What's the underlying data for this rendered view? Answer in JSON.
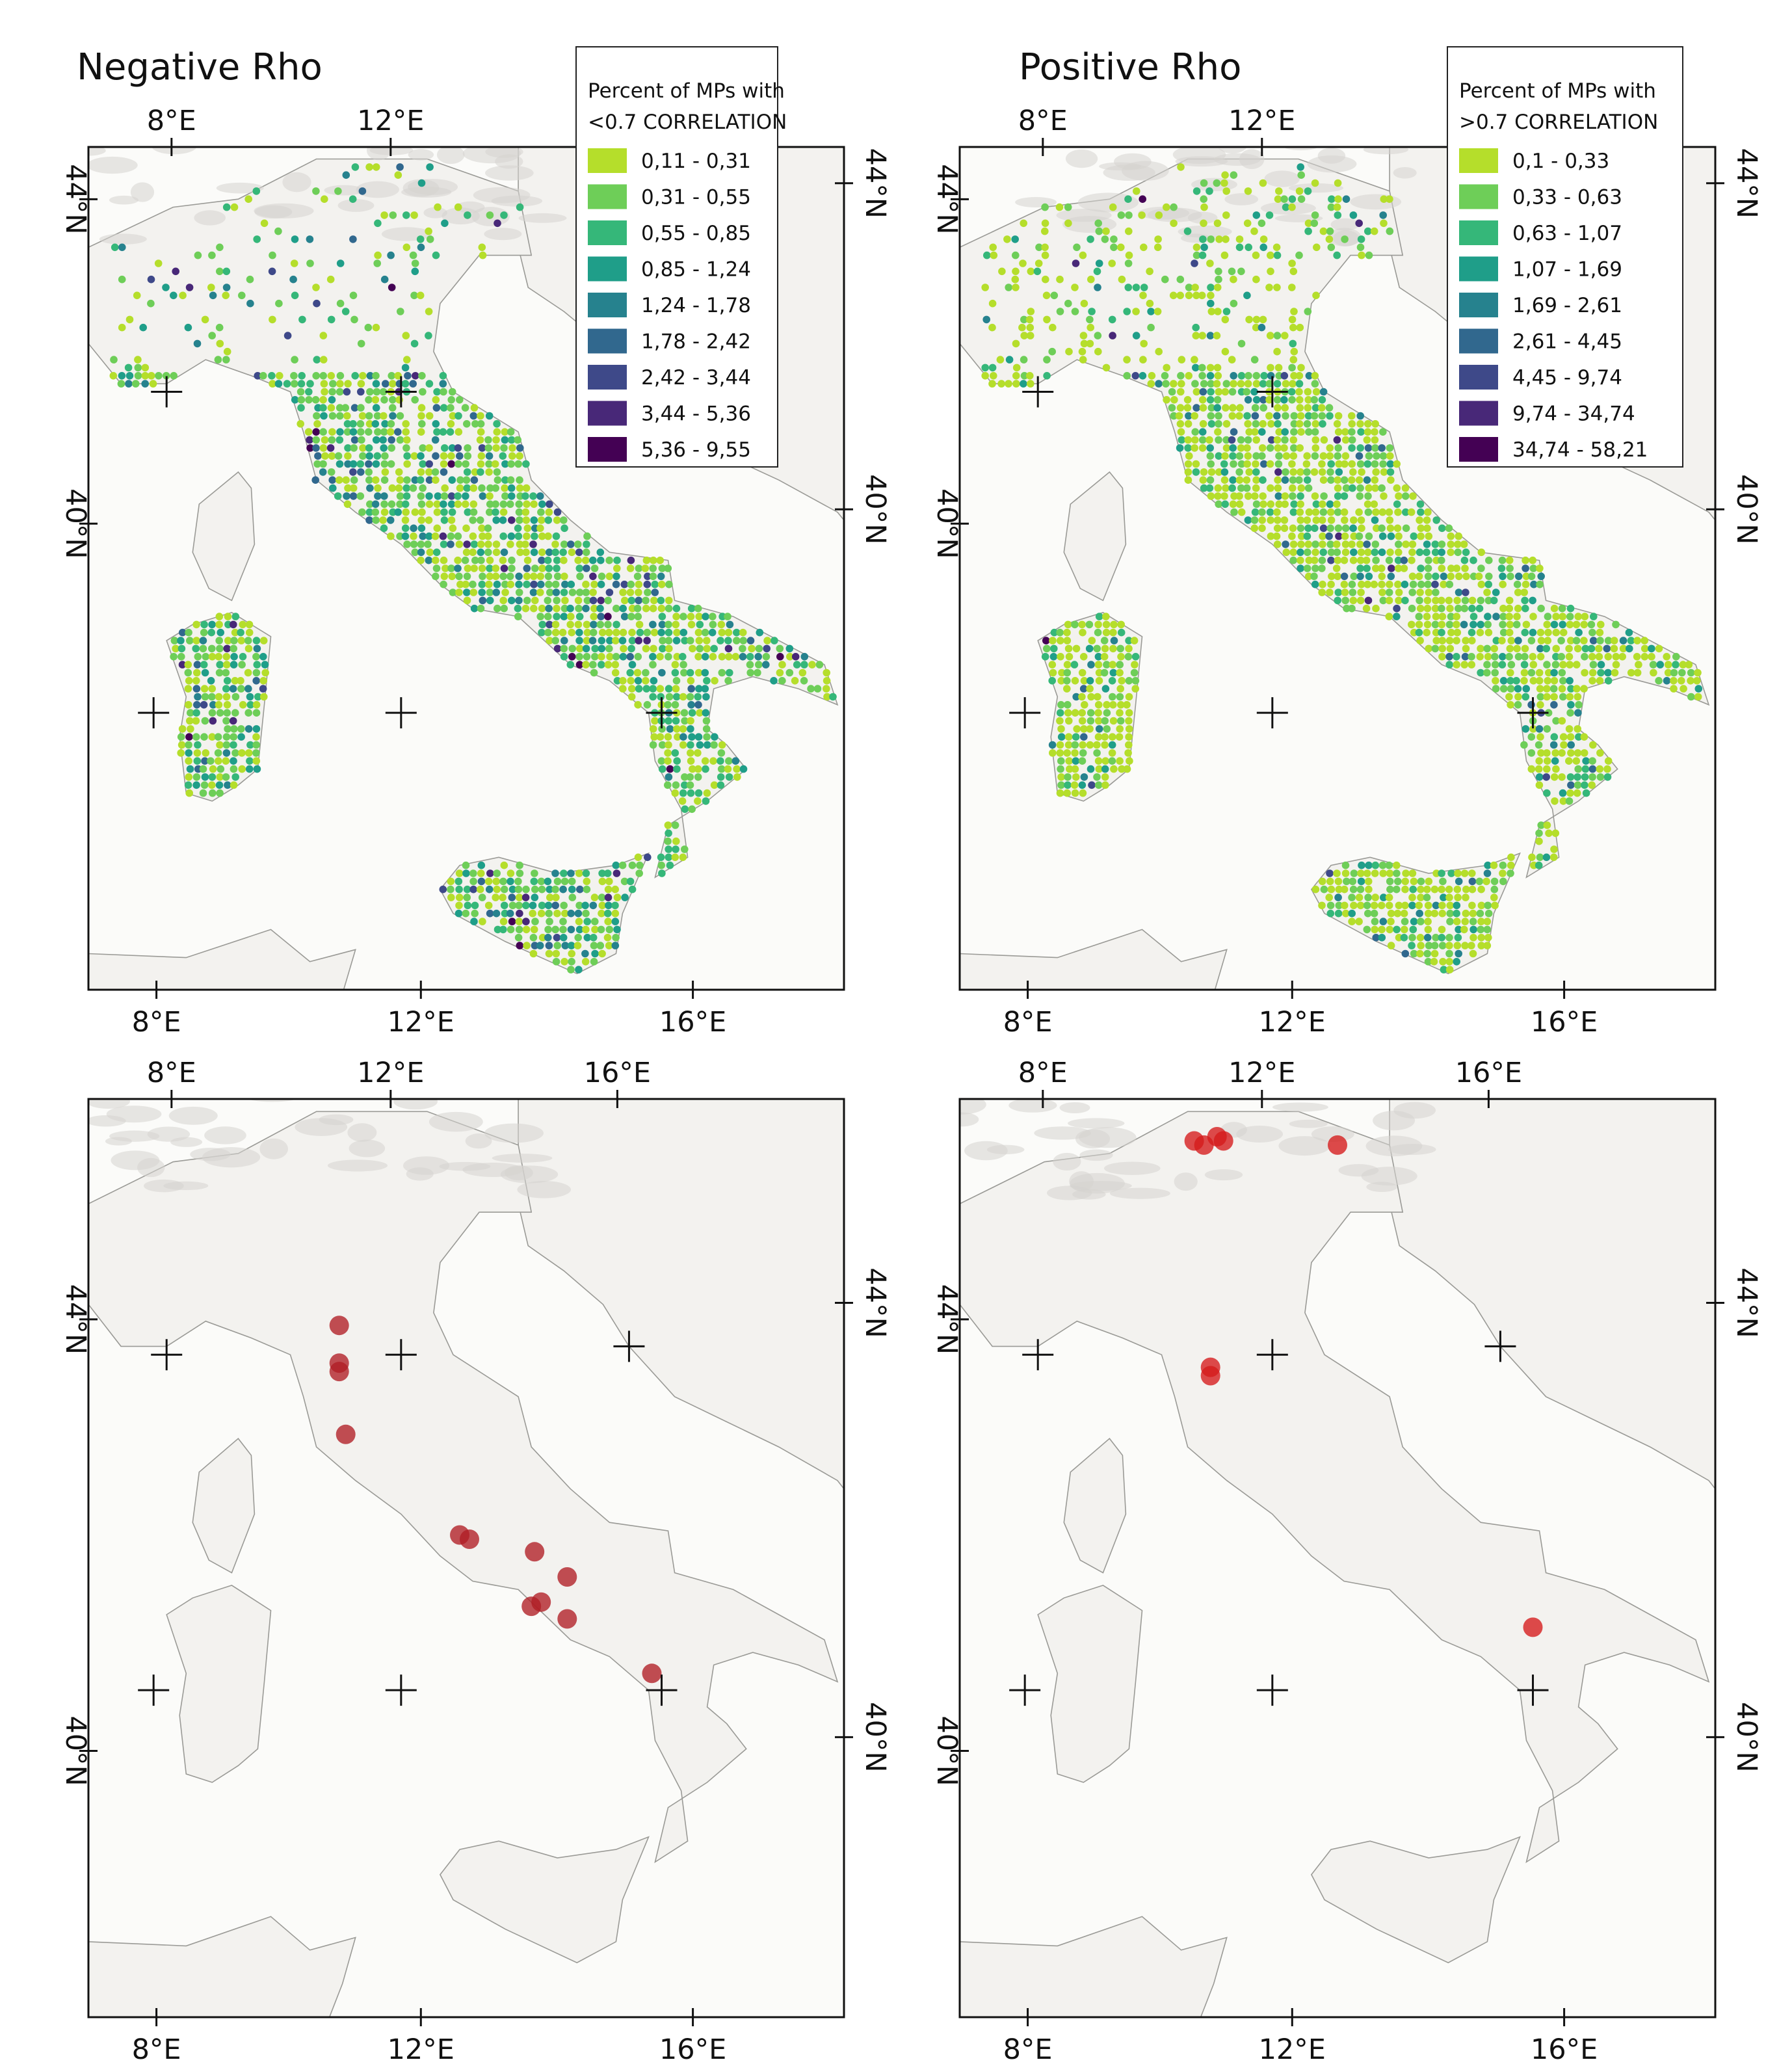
{
  "panels": [
    {
      "id": "neg-rho",
      "title": "Negative Rho",
      "legend": {
        "title_line1": "Percent of MPs with",
        "title_line2": "<0.7 CORRELATION",
        "classes": [
          "0,11 - 0,31",
          "0,31 - 0,55",
          "0,55 - 0,85",
          "0,85 - 1,24",
          "1,24 - 1,78",
          "1,78 - 2,42",
          "2,42 - 3,44",
          "3,44 - 5,36",
          "5,36 - 9,55"
        ]
      },
      "top_ticks": [
        "8°E",
        "12°E"
      ],
      "bottom_ticks": [
        "8°E",
        "12°E",
        "16°E"
      ],
      "left_ticks": [
        "44°N",
        "40°N"
      ],
      "right_ticks": [
        "44°N",
        "40°N"
      ]
    },
    {
      "id": "pos-rho",
      "title": "Positive Rho",
      "legend": {
        "title_line1": "Percent of MPs with",
        "title_line2": ">0.7 CORRELATION",
        "classes": [
          "0,1 - 0,33",
          "0,33 - 0,63",
          "0,63 - 1,07",
          "1,07 - 1,69",
          "1,69 - 2,61",
          "2,61 - 4,45",
          "4,45 - 9,74",
          "9,74 - 34,74",
          "34,74 - 58,21"
        ]
      },
      "top_ticks": [
        "8°E",
        "12°E"
      ],
      "bottom_ticks": [
        "8°E",
        "12°E",
        "16°E"
      ],
      "left_ticks": [
        "44°N",
        "40°N"
      ],
      "right_ticks": [
        "44°N",
        "40°N"
      ]
    },
    {
      "id": "neg-points",
      "title": "",
      "top_ticks": [
        "8°E",
        "12°E",
        "16°E"
      ],
      "bottom_ticks": [
        "8°E",
        "12°E",
        "16°E"
      ],
      "left_ticks": [
        "44°N",
        "40°N"
      ],
      "right_ticks": [
        "44°N",
        "40°N"
      ]
    },
    {
      "id": "pos-points",
      "title": "",
      "top_ticks": [
        "8°E",
        "12°E",
        "16°E"
      ],
      "bottom_ticks": [
        "8°E",
        "12°E",
        "16°E"
      ],
      "left_ticks": [
        "44°N",
        "40°N"
      ],
      "right_ticks": [
        "44°N",
        "40°N"
      ]
    }
  ],
  "colors": {
    "viridis_classes": [
      "#b5de2b",
      "#6ece58",
      "#35b779",
      "#1f9e89",
      "#26828e",
      "#31688e",
      "#3e4989",
      "#482878",
      "#440154"
    ],
    "land": "#f3f2ef",
    "sea": "#fbfbf9",
    "marker": "#b01e24",
    "marker_pos": "#d51a1a"
  },
  "points": {
    "negative": [
      {
        "lon": 10.85,
        "lat": 44.35
      },
      {
        "lon": 10.85,
        "lat": 43.9
      },
      {
        "lon": 10.85,
        "lat": 43.8
      },
      {
        "lon": 10.95,
        "lat": 43.05
      },
      {
        "lon": 12.7,
        "lat": 41.85
      },
      {
        "lon": 12.85,
        "lat": 41.8
      },
      {
        "lon": 13.85,
        "lat": 41.65
      },
      {
        "lon": 14.35,
        "lat": 41.35
      },
      {
        "lon": 13.8,
        "lat": 41.0
      },
      {
        "lon": 13.95,
        "lat": 41.05
      },
      {
        "lon": 14.35,
        "lat": 40.85
      },
      {
        "lon": 15.65,
        "lat": 40.2
      }
    ],
    "positive": [
      {
        "lon": 10.6,
        "lat": 46.55
      },
      {
        "lon": 10.75,
        "lat": 46.5
      },
      {
        "lon": 10.95,
        "lat": 46.6
      },
      {
        "lon": 11.05,
        "lat": 46.55
      },
      {
        "lon": 12.8,
        "lat": 46.5
      },
      {
        "lon": 10.85,
        "lat": 43.85
      },
      {
        "lon": 10.85,
        "lat": 43.75
      },
      {
        "lon": 15.8,
        "lat": 40.75
      }
    ]
  }
}
